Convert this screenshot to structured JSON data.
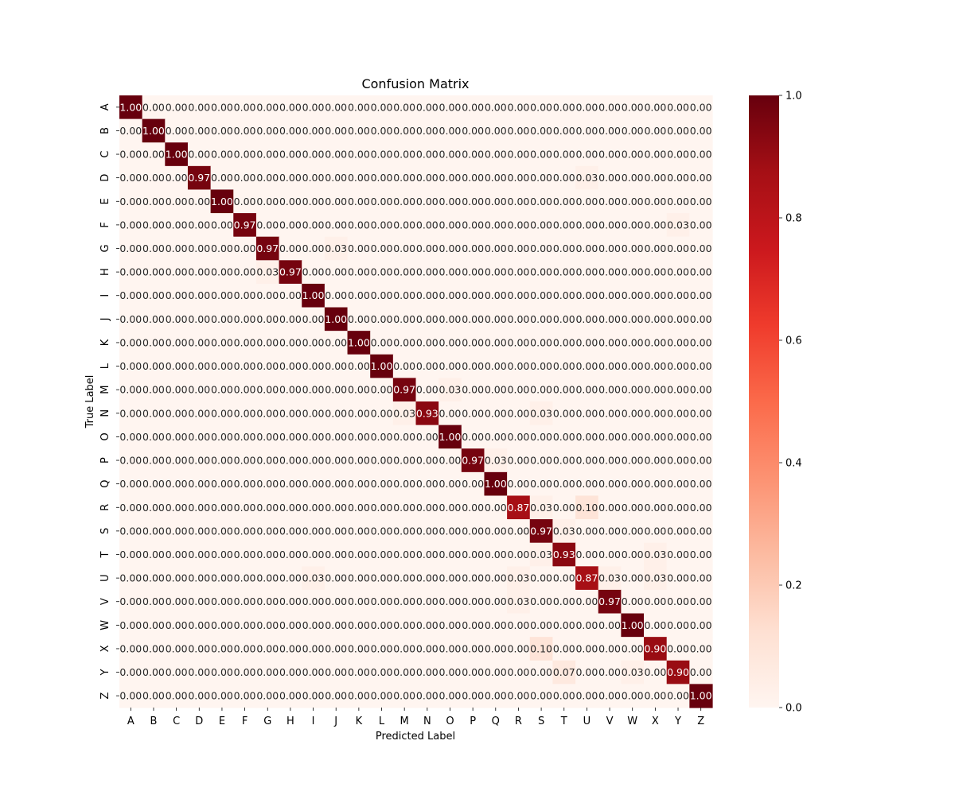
{
  "chart_data": {
    "type": "heatmap",
    "title": "Confusion Matrix",
    "xlabel": "Predicted Label",
    "ylabel": "True Label",
    "categories": [
      "A",
      "B",
      "C",
      "D",
      "E",
      "F",
      "G",
      "H",
      "I",
      "J",
      "K",
      "L",
      "M",
      "N",
      "O",
      "P",
      "Q",
      "R",
      "S",
      "T",
      "U",
      "V",
      "W",
      "X",
      "Y",
      "Z"
    ],
    "value_format": "0.00",
    "colormap": "Reds",
    "color_range": [
      0,
      1
    ],
    "colorbar_ticks": [
      "0.0",
      "0.2",
      "0.4",
      "0.6",
      "0.8",
      "1.0"
    ],
    "colors": {
      "low": "#fff5f0",
      "high": "#67000d"
    },
    "off_diagonal": [
      {
        "row": "D",
        "col": "U",
        "value": 0.03
      },
      {
        "row": "F",
        "col": "Y",
        "value": 0.03
      },
      {
        "row": "G",
        "col": "J",
        "value": 0.03
      },
      {
        "row": "H",
        "col": "G",
        "value": 0.03
      },
      {
        "row": "M",
        "col": "O",
        "value": 0.03
      },
      {
        "row": "N",
        "col": "M",
        "value": 0.03
      },
      {
        "row": "N",
        "col": "S",
        "value": 0.03
      },
      {
        "row": "P",
        "col": "Q",
        "value": 0.03
      },
      {
        "row": "R",
        "col": "S",
        "value": 0.03
      },
      {
        "row": "R",
        "col": "U",
        "value": 0.1
      },
      {
        "row": "S",
        "col": "T",
        "value": 0.03
      },
      {
        "row": "T",
        "col": "S",
        "value": 0.03
      },
      {
        "row": "T",
        "col": "X",
        "value": 0.03
      },
      {
        "row": "U",
        "col": "I",
        "value": 0.03
      },
      {
        "row": "U",
        "col": "R",
        "value": 0.03
      },
      {
        "row": "U",
        "col": "V",
        "value": 0.03
      },
      {
        "row": "U",
        "col": "X",
        "value": 0.03
      },
      {
        "row": "V",
        "col": "R",
        "value": 0.03
      },
      {
        "row": "X",
        "col": "S",
        "value": 0.1
      },
      {
        "row": "Y",
        "col": "T",
        "value": 0.07
      },
      {
        "row": "Y",
        "col": "W",
        "value": 0.03
      }
    ],
    "diagonal": [
      1.0,
      1.0,
      1.0,
      0.97,
      1.0,
      0.97,
      0.97,
      0.97,
      1.0,
      1.0,
      1.0,
      1.0,
      0.97,
      0.93,
      1.0,
      0.97,
      1.0,
      0.87,
      0.97,
      0.93,
      0.87,
      0.97,
      1.0,
      0.9,
      0.9,
      1.0
    ]
  }
}
